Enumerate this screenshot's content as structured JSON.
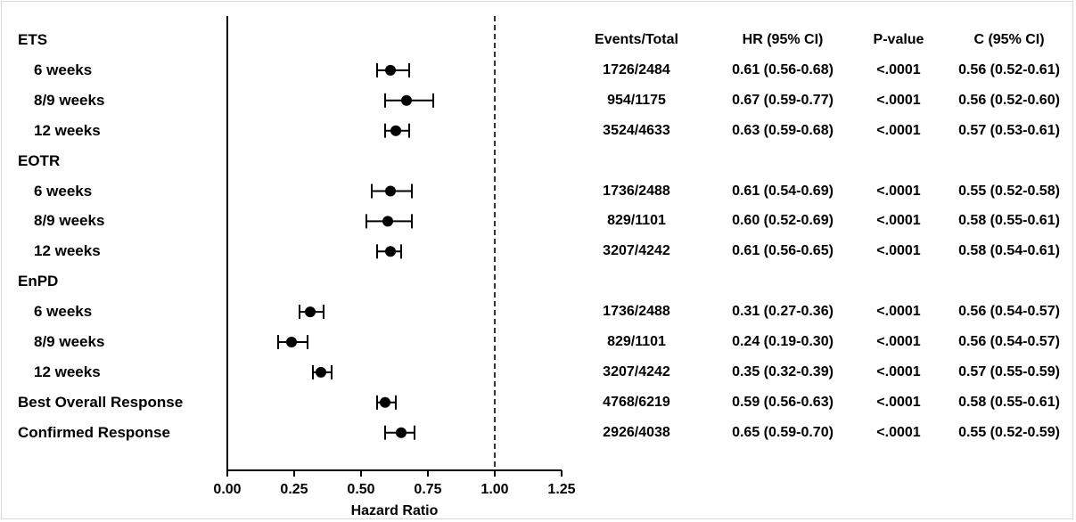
{
  "chart_data": {
    "type": "forest",
    "xlabel": "Hazard Ratio",
    "xlim": [
      0.0,
      1.25
    ],
    "xticks": [
      "0.00",
      "0.25",
      "0.50",
      "0.75",
      "1.00",
      "1.25"
    ],
    "reference_line": 1.0,
    "columns": [
      "Events/Total",
      "HR (95% CI)",
      "P-value",
      "C (95% CI)"
    ],
    "rows": [
      {
        "label": "ETS",
        "header": true
      },
      {
        "label": "6 weeks",
        "hr": 0.61,
        "lo": 0.56,
        "hi": 0.68,
        "events": "1726/2484",
        "hr_ci": "0.61 (0.56-0.68)",
        "p": "<.0001",
        "c_ci": "0.56 (0.52-0.61)"
      },
      {
        "label": "8/9 weeks",
        "hr": 0.67,
        "lo": 0.59,
        "hi": 0.77,
        "events": "954/1175",
        "hr_ci": "0.67 (0.59-0.77)",
        "p": "<.0001",
        "c_ci": "0.56 (0.52-0.60)"
      },
      {
        "label": "12 weeks",
        "hr": 0.63,
        "lo": 0.59,
        "hi": 0.68,
        "events": "3524/4633",
        "hr_ci": "0.63 (0.59-0.68)",
        "p": "<.0001",
        "c_ci": "0.57 (0.53-0.61)"
      },
      {
        "label": "EOTR",
        "header": true
      },
      {
        "label": "6 weeks",
        "hr": 0.61,
        "lo": 0.54,
        "hi": 0.69,
        "events": "1736/2488",
        "hr_ci": "0.61 (0.54-0.69)",
        "p": "<.0001",
        "c_ci": "0.55 (0.52-0.58)"
      },
      {
        "label": "8/9 weeks",
        "hr": 0.6,
        "lo": 0.52,
        "hi": 0.69,
        "events": "829/1101",
        "hr_ci": "0.60 (0.52-0.69)",
        "p": "<.0001",
        "c_ci": "0.58 (0.55-0.61)"
      },
      {
        "label": "12 weeks",
        "hr": 0.61,
        "lo": 0.56,
        "hi": 0.65,
        "events": "3207/4242",
        "hr_ci": "0.61 (0.56-0.65)",
        "p": "<.0001",
        "c_ci": "0.58 (0.54-0.61)"
      },
      {
        "label": "EnPD",
        "header": true
      },
      {
        "label": "6 weeks",
        "hr": 0.31,
        "lo": 0.27,
        "hi": 0.36,
        "events": "1736/2488",
        "hr_ci": "0.31 (0.27-0.36)",
        "p": "<.0001",
        "c_ci": "0.56 (0.54-0.57)"
      },
      {
        "label": "8/9 weeks",
        "hr": 0.24,
        "lo": 0.19,
        "hi": 0.3,
        "events": "829/1101",
        "hr_ci": "0.24 (0.19-0.30)",
        "p": "<.0001",
        "c_ci": "0.56 (0.54-0.57)"
      },
      {
        "label": "12 weeks",
        "hr": 0.35,
        "lo": 0.32,
        "hi": 0.39,
        "events": "3207/4242",
        "hr_ci": "0.35 (0.32-0.39)",
        "p": "<.0001",
        "c_ci": "0.57 (0.55-0.59)"
      },
      {
        "label": "Best Overall Response",
        "hr": 0.59,
        "lo": 0.56,
        "hi": 0.63,
        "events": "4768/6219",
        "hr_ci": "0.59 (0.56-0.63)",
        "p": "<.0001",
        "c_ci": "0.58 (0.55-0.61)",
        "top_level": true
      },
      {
        "label": "Confirmed Response",
        "hr": 0.65,
        "lo": 0.59,
        "hi": 0.7,
        "events": "2926/4038",
        "hr_ci": "0.65 (0.59-0.70)",
        "p": "<.0001",
        "c_ci": "0.55 (0.52-0.59)",
        "top_level": true
      }
    ]
  }
}
